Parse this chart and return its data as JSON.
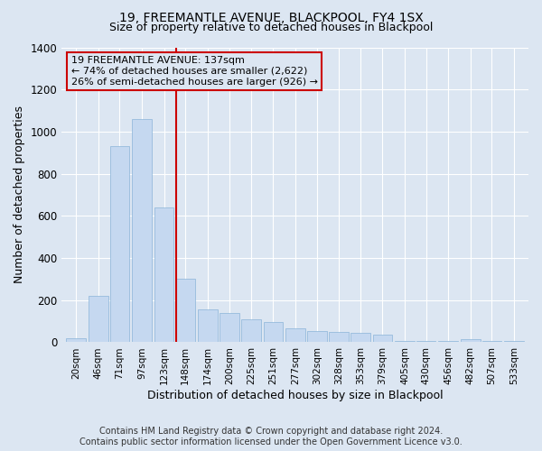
{
  "title": "19, FREEMANTLE AVENUE, BLACKPOOL, FY4 1SX",
  "subtitle": "Size of property relative to detached houses in Blackpool",
  "xlabel": "Distribution of detached houses by size in Blackpool",
  "ylabel": "Number of detached properties",
  "footer_line1": "Contains HM Land Registry data © Crown copyright and database right 2024.",
  "footer_line2": "Contains public sector information licensed under the Open Government Licence v3.0.",
  "property_label": "19 FREEMANTLE AVENUE: 137sqm",
  "annotation_line2": "← 74% of detached houses are smaller (2,622)",
  "annotation_line3": "26% of semi-detached houses are larger (926) →",
  "property_size": 137,
  "bins": [
    20,
    46,
    71,
    97,
    123,
    148,
    174,
    200,
    225,
    251,
    277,
    302,
    328,
    353,
    379,
    405,
    430,
    456,
    482,
    507,
    533
  ],
  "values": [
    20,
    220,
    930,
    1060,
    640,
    300,
    155,
    140,
    110,
    95,
    65,
    55,
    50,
    45,
    35,
    5,
    5,
    5,
    15,
    5,
    5
  ],
  "bar_color": "#c5d8f0",
  "bar_edge_color": "#8ab4d8",
  "vline_color": "#cc0000",
  "vline_x": 137,
  "background_color": "#dce6f2",
  "ylim": [
    0,
    1400
  ],
  "yticks": [
    0,
    200,
    400,
    600,
    800,
    1000,
    1200,
    1400
  ],
  "grid_color": "#ffffff",
  "title_fontsize": 10,
  "subtitle_fontsize": 9,
  "tick_fontsize": 7.5,
  "label_fontsize": 9,
  "footer_fontsize": 7
}
